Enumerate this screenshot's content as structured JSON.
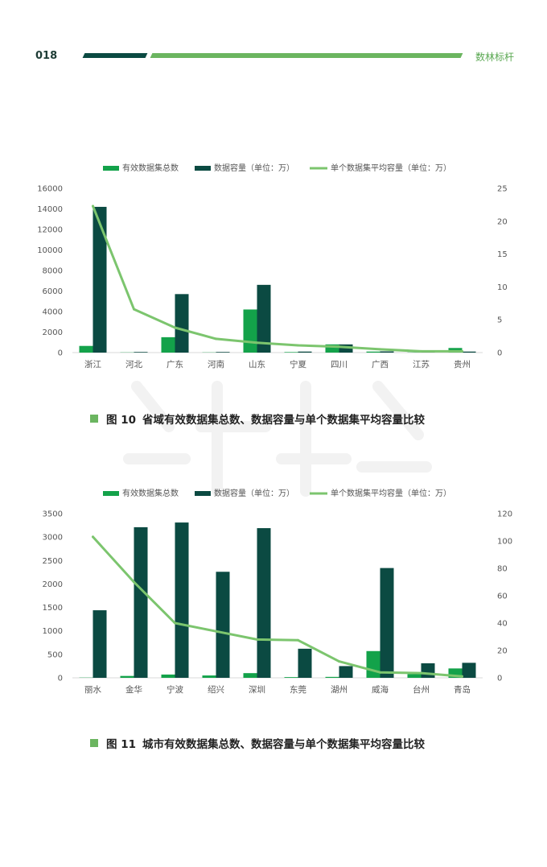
{
  "header": {
    "page_number": "018",
    "brand": "数林标杆"
  },
  "colors": {
    "green_bar": "#13a24a",
    "dark_bar": "#0b4a42",
    "line": "#7cc56e",
    "axis_text": "#555555"
  },
  "legend": {
    "datasets": "有效数据集总数",
    "capacity": "数据容量（单位：万）",
    "average": "单个数据集平均容量（单位：万）"
  },
  "figures": [
    {
      "label": "图 10",
      "title": "省域有效数据集总数、数据容量与单个数据集平均容量比较"
    },
    {
      "label": "图 11",
      "title": "城市有效数据集总数、数据容量与单个数据集平均容量比较"
    }
  ],
  "chart_data": [
    {
      "type": "bar",
      "title": "",
      "categories": [
        "浙江",
        "河北",
        "广东",
        "河南",
        "山东",
        "宁夏",
        "四川",
        "广西",
        "江苏",
        "贵州"
      ],
      "series": [
        {
          "name": "有效数据集总数",
          "type": "bar",
          "axis": "left",
          "values": [
            650,
            20,
            1500,
            20,
            4200,
            50,
            800,
            100,
            20,
            450
          ]
        },
        {
          "name": "数据容量（单位：万）",
          "type": "bar",
          "axis": "left",
          "values": [
            14200,
            60,
            5700,
            60,
            6600,
            100,
            800,
            120,
            30,
            100
          ]
        },
        {
          "name": "单个数据集平均容量（单位：万）",
          "type": "line",
          "axis": "right",
          "values": [
            22.3,
            6.6,
            3.8,
            2.1,
            1.5,
            1.1,
            0.9,
            0.5,
            0.2,
            0.2
          ]
        }
      ],
      "left_ticks": [
        "0",
        "2000",
        "4000",
        "6000",
        "8000",
        "10000",
        "12000",
        "14000",
        "16000"
      ],
      "right_ticks": [
        "0",
        "5",
        "10",
        "15",
        "20",
        "25"
      ],
      "ylim": [
        0,
        16000
      ],
      "y2lim": [
        0,
        25
      ],
      "legend": "top",
      "grid": false
    },
    {
      "type": "bar",
      "title": "",
      "categories": [
        "丽水",
        "金华",
        "宁波",
        "绍兴",
        "深圳",
        "东莞",
        "湖州",
        "威海",
        "台州",
        "青岛"
      ],
      "series": [
        {
          "name": "有效数据集总数",
          "type": "bar",
          "axis": "left",
          "values": [
            5,
            40,
            70,
            50,
            100,
            15,
            20,
            570,
            80,
            200
          ]
        },
        {
          "name": "数据容量（单位：万）",
          "type": "bar",
          "axis": "left",
          "values": [
            1440,
            3210,
            3310,
            2260,
            3190,
            620,
            250,
            2340,
            310,
            320
          ]
        },
        {
          "name": "单个数据集平均容量（单位：万）",
          "type": "line",
          "axis": "right",
          "values": [
            103,
            70,
            40,
            34,
            28,
            27.5,
            12,
            4,
            3.5,
            1
          ]
        }
      ],
      "left_ticks": [
        "0",
        "500",
        "1000",
        "1500",
        "2000",
        "2500",
        "3000",
        "3500"
      ],
      "right_ticks": [
        "0",
        "20",
        "40",
        "60",
        "80",
        "100",
        "120"
      ],
      "ylim": [
        0,
        3500
      ],
      "y2lim": [
        0,
        120
      ],
      "legend": "top",
      "grid": false
    }
  ]
}
